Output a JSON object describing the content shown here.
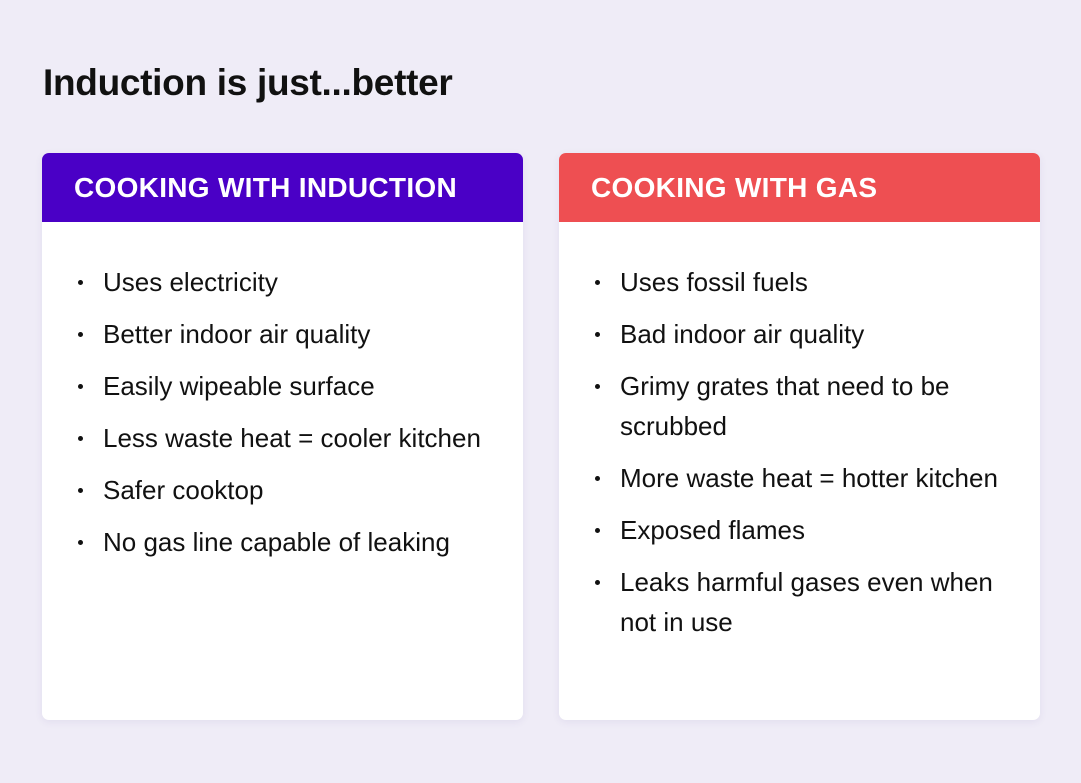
{
  "title": "Induction is just...better",
  "colors": {
    "background": "#efecf7",
    "induction_header": "#4a00c6",
    "gas_header": "#ee4f52"
  },
  "cards": [
    {
      "heading": "COOKING WITH INDUCTION",
      "items": [
        "Uses electricity",
        "Better indoor air quality",
        "Easily wipeable surface",
        "Less waste heat = cooler kitchen",
        "Safer cooktop",
        "No gas line capable of leaking"
      ]
    },
    {
      "heading": "COOKING WITH GAS",
      "items": [
        "Uses fossil fuels",
        "Bad indoor air quality",
        "Grimy grates that need to be scrubbed",
        "More waste heat = hotter kitchen",
        "Exposed flames",
        "Leaks harmful gases even when not in use"
      ]
    }
  ]
}
